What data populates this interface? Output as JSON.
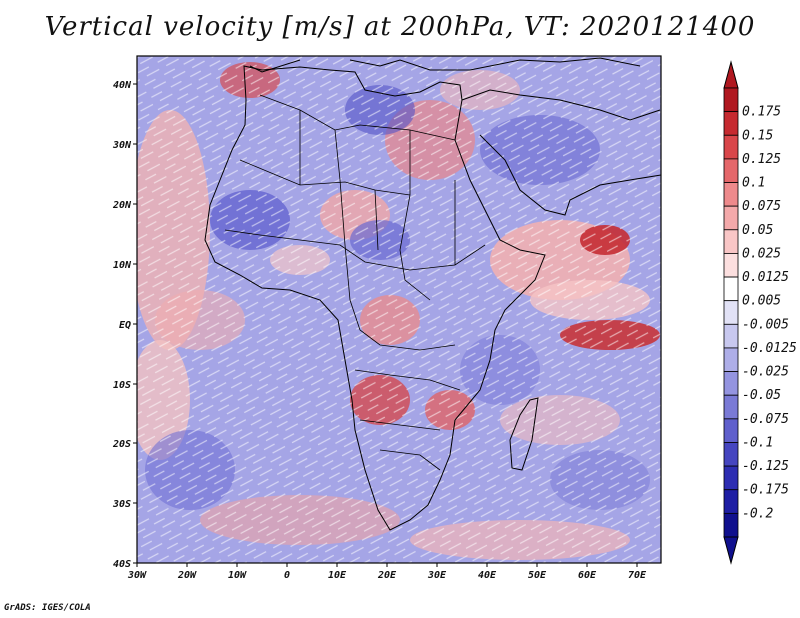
{
  "title": "Vertical velocity [m/s] at 200hPa, VT: 2020121400",
  "credit": "GrADS: IGES/COLA",
  "map": {
    "variable": "Vertical velocity",
    "units": "m/s",
    "level": "200hPa",
    "valid_time": "2020121400",
    "lon_range": [
      -30,
      75
    ],
    "lat_range": [
      -40,
      45
    ],
    "x_ticks": [
      "30W",
      "20W",
      "10W",
      "0",
      "10E",
      "20E",
      "30E",
      "40E",
      "50E",
      "60E",
      "70E"
    ],
    "y_ticks": [
      "40N",
      "30N",
      "20N",
      "10N",
      "EQ",
      "10S",
      "20S",
      "30S",
      "40S"
    ]
  },
  "colorbar": {
    "labels": [
      "0.175",
      "0.15",
      "0.125",
      "0.1",
      "0.075",
      "0.05",
      "0.025",
      "0.0125",
      "0.005",
      "-0.005",
      "-0.0125",
      "-0.025",
      "-0.05",
      "-0.075",
      "-0.1",
      "-0.125",
      "-0.175",
      "-0.2"
    ],
    "colors": [
      "#b01820",
      "#c62a30",
      "#d9464a",
      "#e5676a",
      "#ee8a8c",
      "#f4a9aa",
      "#f9c6c6",
      "#fcdfdf",
      "#ffffff",
      "#e2e2f6",
      "#c8c8ef",
      "#aeaee8",
      "#9494e0",
      "#7a7ad6",
      "#5f5fcc",
      "#4545c0",
      "#2d2db2",
      "#1e1ea4",
      "#10108e"
    ]
  }
}
